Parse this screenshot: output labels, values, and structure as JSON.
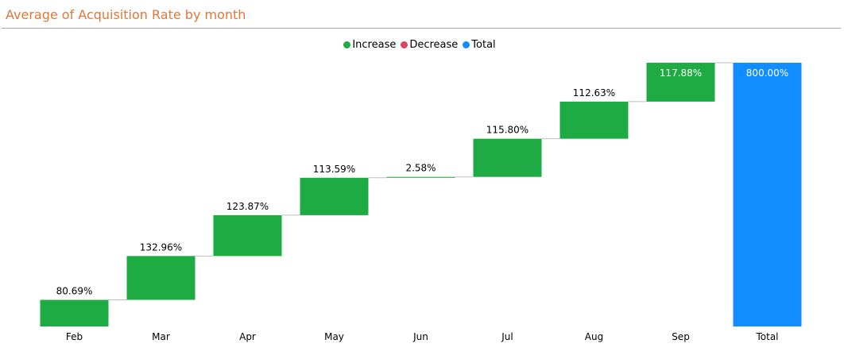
{
  "title": "Average of Acquisition Rate by month",
  "legend": [
    {
      "label": "Increase",
      "color": "#1eab43"
    },
    {
      "label": "Decrease",
      "color": "#d9475c"
    },
    {
      "label": "Total",
      "color": "#118dff"
    }
  ],
  "chart_data": {
    "type": "bar",
    "subtype": "waterfall",
    "title": "Average of Acquisition Rate by month",
    "xlabel": "",
    "ylabel": "",
    "categories": [
      "Feb",
      "Mar",
      "Apr",
      "May",
      "Jun",
      "Jul",
      "Aug",
      "Sep",
      "Total"
    ],
    "values": [
      80.69,
      132.96,
      123.87,
      113.59,
      2.58,
      115.8,
      112.63,
      117.88,
      800.0
    ],
    "labels": [
      "80.69%",
      "132.96%",
      "123.87%",
      "113.59%",
      "2.58%",
      "115.80%",
      "112.63%",
      "117.88%",
      "800.00%"
    ],
    "kinds": [
      "increase",
      "increase",
      "increase",
      "increase",
      "increase",
      "increase",
      "increase",
      "increase",
      "total"
    ],
    "ylim": [
      0,
      800
    ],
    "grid": false,
    "legend_position": "top-center",
    "colors": {
      "increase": "#1eab43",
      "decrease": "#d9475c",
      "total": "#118dff",
      "connector": "#bfbfbf"
    }
  }
}
